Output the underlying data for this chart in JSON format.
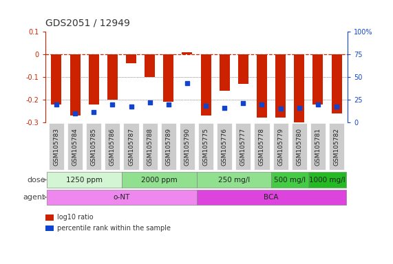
{
  "title": "GDS2051 / 12949",
  "samples": [
    "GSM105783",
    "GSM105784",
    "GSM105785",
    "GSM105786",
    "GSM105787",
    "GSM105788",
    "GSM105789",
    "GSM105790",
    "GSM105775",
    "GSM105776",
    "GSM105777",
    "GSM105778",
    "GSM105779",
    "GSM105780",
    "GSM105781",
    "GSM105782"
  ],
  "log10_ratio": [
    -0.22,
    -0.27,
    -0.22,
    -0.2,
    -0.04,
    -0.1,
    -0.21,
    0.01,
    -0.27,
    -0.16,
    -0.13,
    -0.28,
    -0.28,
    -0.3,
    -0.22,
    -0.26
  ],
  "percentile_rank": [
    20,
    10,
    11,
    20,
    17,
    22,
    20,
    43,
    18,
    16,
    21,
    20,
    15,
    16,
    20,
    17
  ],
  "ylim_left": [
    -0.3,
    0.1
  ],
  "ylim_right": [
    0,
    100
  ],
  "bar_color": "#cc2200",
  "dot_color": "#1144cc",
  "hline_color": "#cc2200",
  "dot_gridline_color": "#333333",
  "dose_groups": [
    {
      "label": "1250 ppm",
      "start": 0,
      "end": 4,
      "color": "#d4f5d4"
    },
    {
      "label": "2000 ppm",
      "start": 4,
      "end": 8,
      "color": "#90e090"
    },
    {
      "label": "250 mg/l",
      "start": 8,
      "end": 12,
      "color": "#90e090"
    },
    {
      "label": "500 mg/l",
      "start": 12,
      "end": 14,
      "color": "#44cc44"
    },
    {
      "label": "1000 mg/l",
      "start": 14,
      "end": 16,
      "color": "#22bb22"
    }
  ],
  "agent_groups": [
    {
      "label": "o-NT",
      "start": 0,
      "end": 8,
      "color": "#ee88ee"
    },
    {
      "label": "BCA",
      "start": 8,
      "end": 16,
      "color": "#dd44dd"
    }
  ],
  "dose_row_label": "dose",
  "agent_row_label": "agent",
  "legend_bar_label": "log10 ratio",
  "legend_dot_label": "percentile rank within the sample",
  "bg_color": "#ffffff",
  "sample_box_color": "#cccccc",
  "title_fontsize": 10,
  "tick_fontsize": 7,
  "sample_fontsize": 6.5,
  "row_label_fontsize": 8,
  "row_fontsize": 7.5,
  "legend_fontsize": 7
}
